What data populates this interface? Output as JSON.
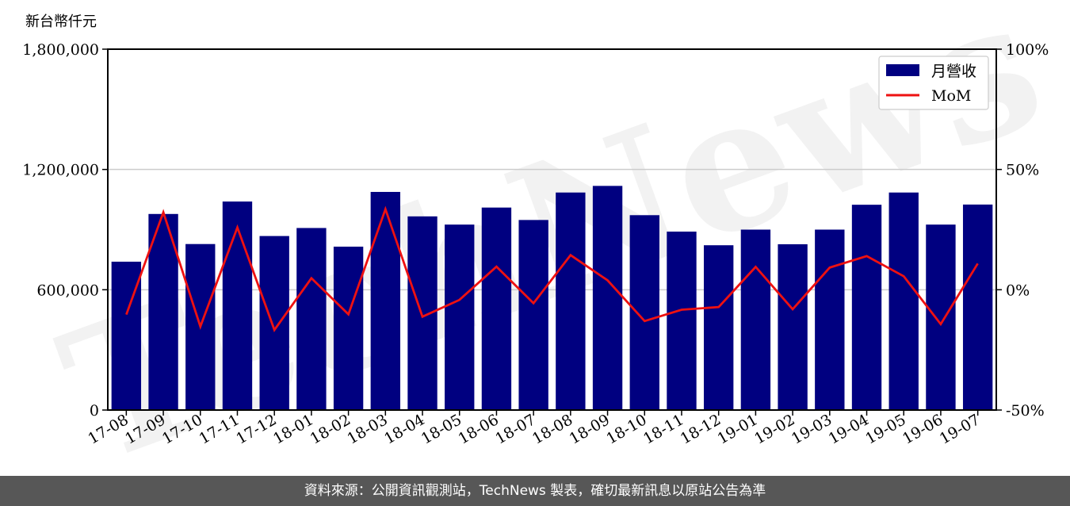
{
  "chart_data": {
    "type": "bar",
    "units_label": "新台幣仟元",
    "categories": [
      "17-08",
      "17-09",
      "17-10",
      "17-11",
      "17-12",
      "18-01",
      "18-02",
      "18-03",
      "18-04",
      "18-05",
      "18-06",
      "18-07",
      "18-08",
      "18-09",
      "18-10",
      "18-11",
      "18-12",
      "19-01",
      "19-02",
      "19-03",
      "19-04",
      "19-05",
      "19-06",
      "19-07"
    ],
    "series": [
      {
        "name": "月營收",
        "type": "bar",
        "axis": "left",
        "color": "#000080",
        "values": [
          740000,
          978000,
          828000,
          1040000,
          868000,
          908000,
          815000,
          1088000,
          966000,
          925000,
          1010000,
          948000,
          1085000,
          1118000,
          972000,
          890000,
          822000,
          900000,
          827000,
          900000,
          1024000,
          1085000,
          925000,
          1025000
        ]
      },
      {
        "name": "MoM",
        "type": "line",
        "axis": "right",
        "color": "#ee1111",
        "values": [
          -10.3,
          32.2,
          -15.3,
          25.9,
          -16.7,
          4.8,
          -10.2,
          33.5,
          -11.2,
          -4.2,
          9.6,
          -5.6,
          14.4,
          3.9,
          -13.0,
          -8.3,
          -7.2,
          9.5,
          -8.1,
          9.2,
          14.0,
          5.6,
          -14.3,
          10.9
        ]
      }
    ],
    "y_left": {
      "min": 0,
      "max": 1800000,
      "ticks": [
        0,
        600000,
        1200000,
        1800000
      ],
      "tick_labels": [
        "0",
        "600,000",
        "1,200,000",
        "1,800,000"
      ]
    },
    "y_right": {
      "min": -50,
      "max": 100,
      "ticks": [
        -50,
        0,
        50,
        100
      ],
      "tick_labels": [
        "-50%",
        "0%",
        "50%",
        "100%"
      ]
    },
    "grid": "horizontal",
    "legend": "top-right",
    "watermark": "TechNews"
  },
  "footer": {
    "text": "資料來源：公開資訊觀測站，TechNews 製表，確切最新訊息以原站公告為準"
  }
}
